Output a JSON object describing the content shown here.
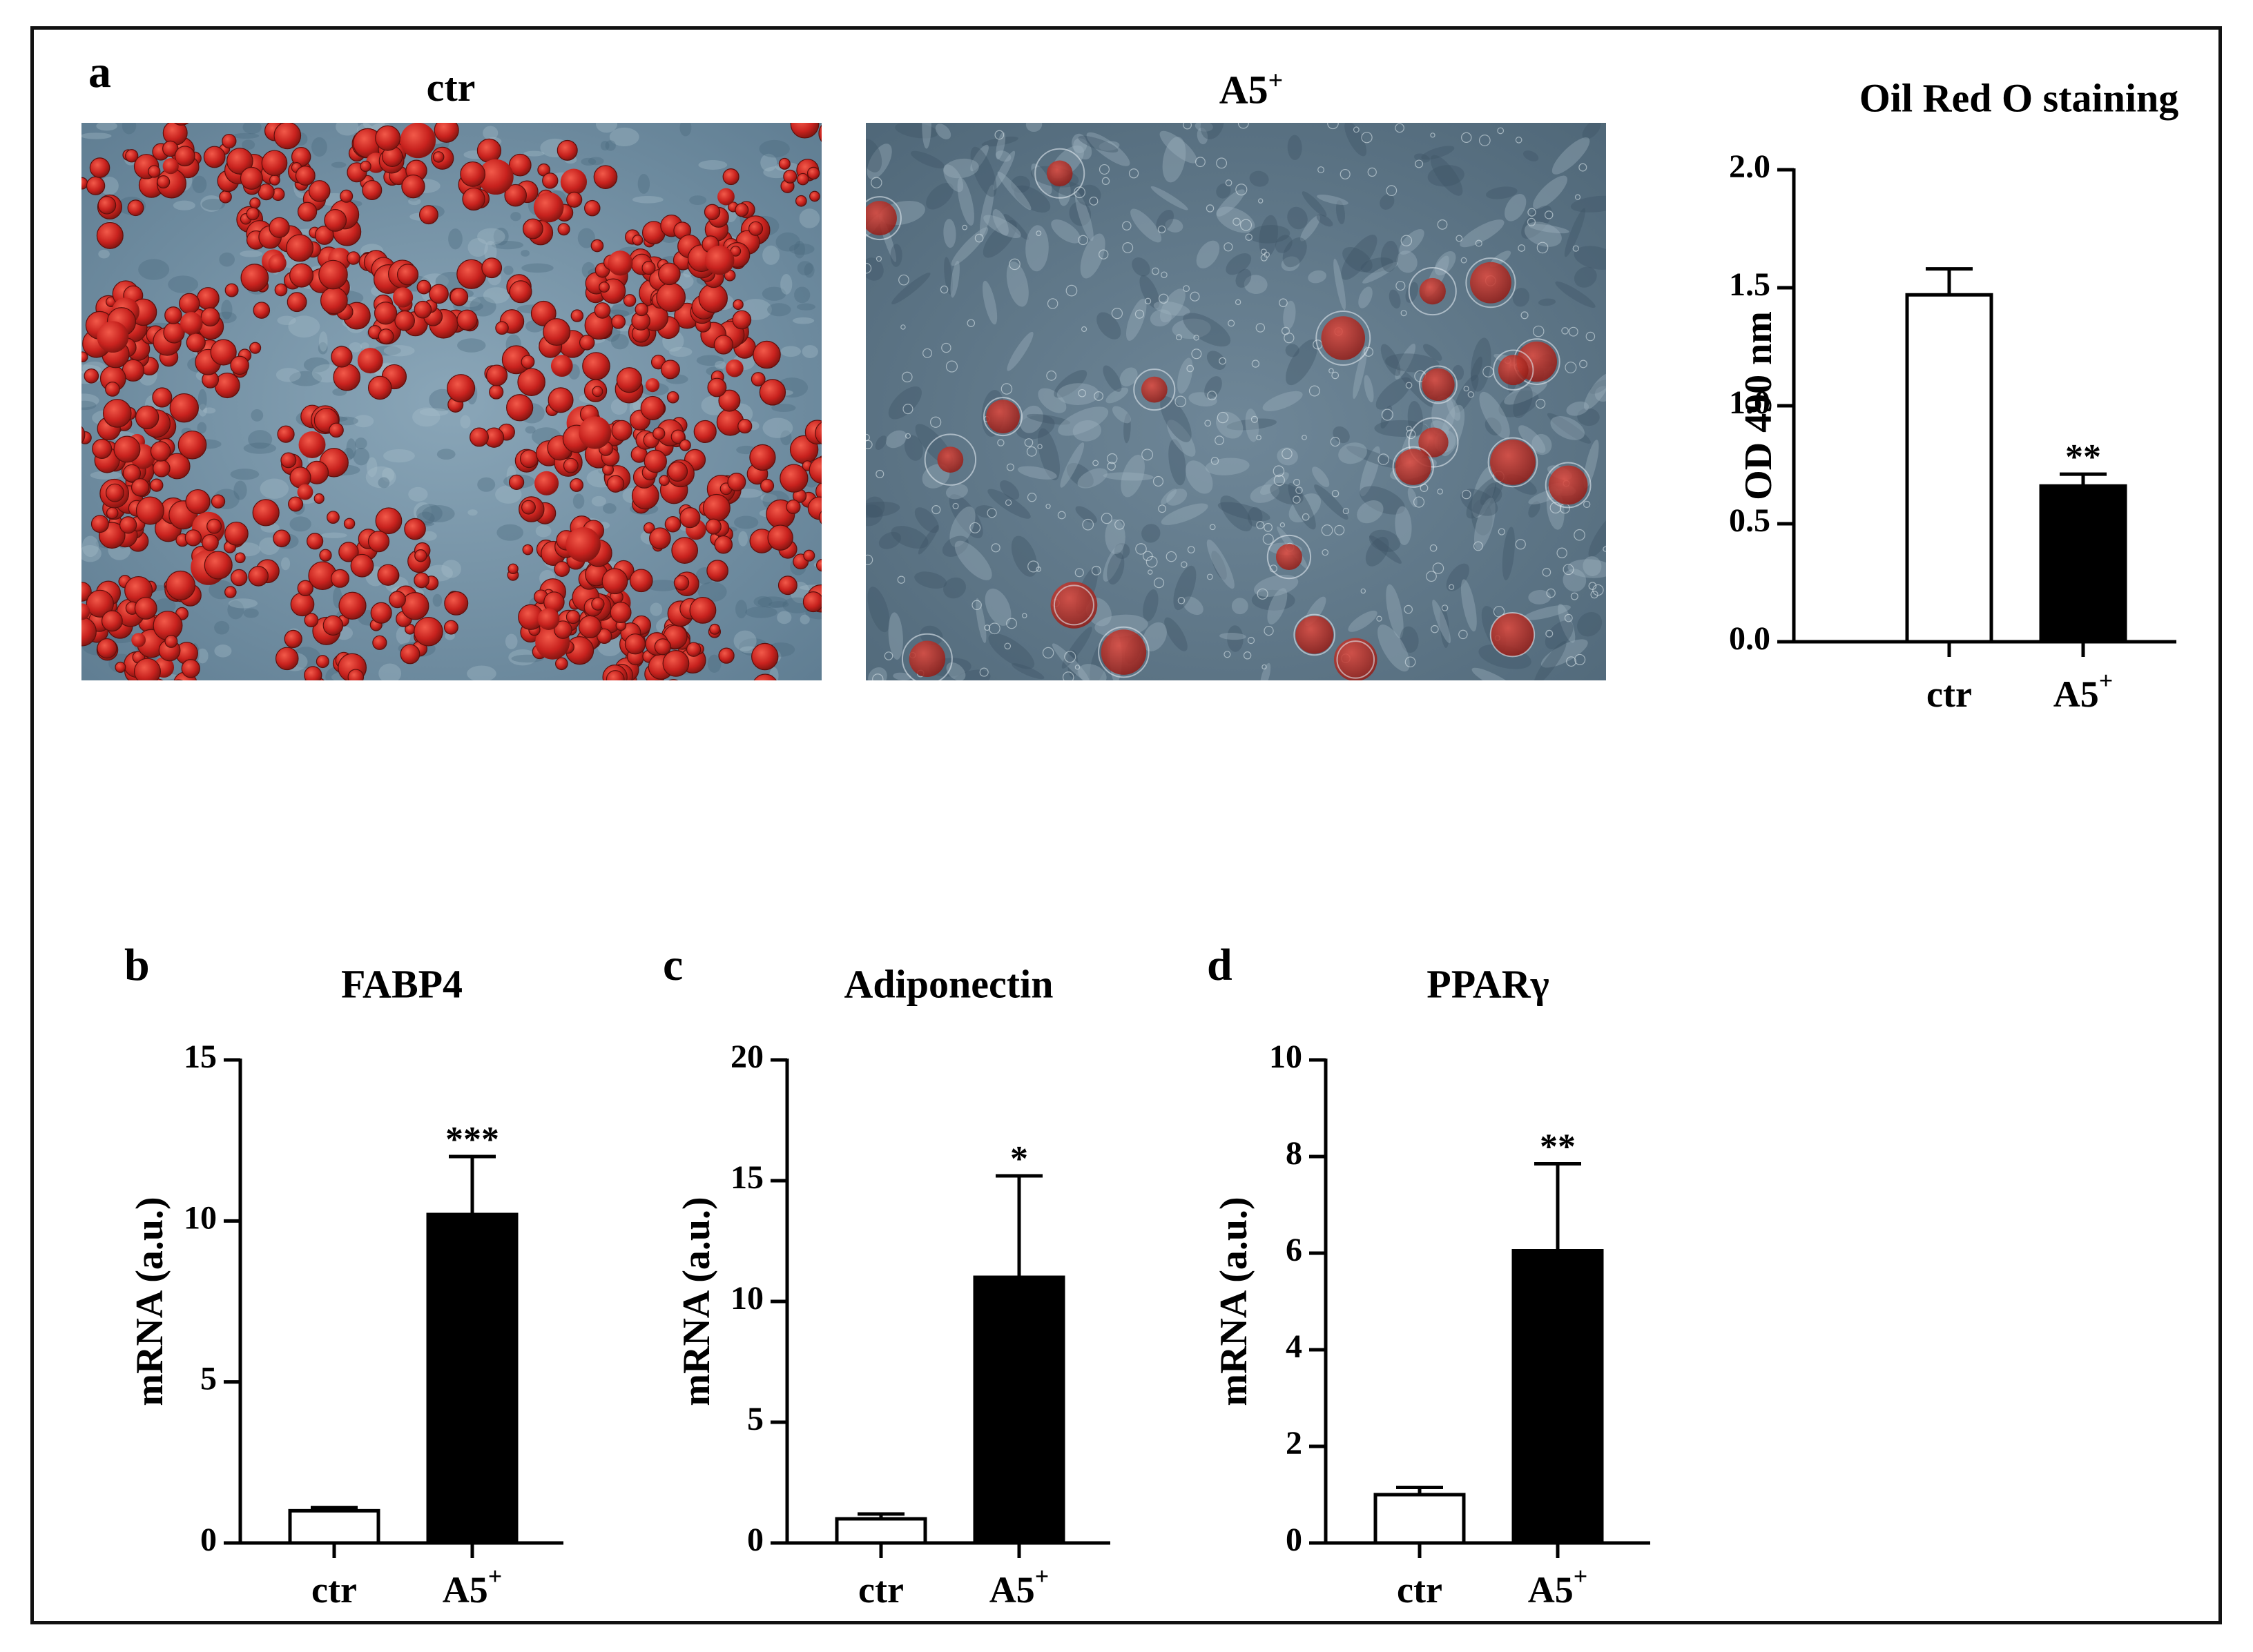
{
  "panels": {
    "a": {
      "label": "a",
      "images": [
        {
          "title": "ctr"
        },
        {
          "title": "A5",
          "title_sup": "+"
        }
      ]
    },
    "b": {
      "label": "b"
    },
    "c": {
      "label": "c"
    },
    "d": {
      "label": "d"
    }
  },
  "colors": {
    "bar_ctr": "#ffffff",
    "bar_a5": "#000000",
    "axis": "#000000",
    "cell_background": "#6f8ea3",
    "lipid": "#c8221e"
  },
  "chart_data": [
    {
      "id": "a",
      "type": "bar",
      "title": "Oil Red O staining",
      "ylabel": "OD 490 nm",
      "ylim": [
        0,
        2.0
      ],
      "yticks": [
        0.0,
        0.5,
        1.0,
        1.5,
        2.0
      ],
      "ytick_labels": [
        "0.0",
        "0.5",
        "1.0",
        "1.5",
        "2.0"
      ],
      "categories": [
        {
          "label": "ctr",
          "sup": ""
        },
        {
          "label": "A5",
          "sup": "+"
        }
      ],
      "values": [
        1.47,
        0.66
      ],
      "errors": [
        0.11,
        0.05
      ],
      "significance": [
        "",
        "**"
      ]
    },
    {
      "id": "b",
      "type": "bar",
      "title": "FABP4",
      "ylabel": "mRNA (a.u.)",
      "ylim": [
        0,
        15
      ],
      "yticks": [
        0,
        5,
        10,
        15
      ],
      "ytick_labels": [
        "0",
        "5",
        "10",
        "15"
      ],
      "categories": [
        {
          "label": "ctr",
          "sup": ""
        },
        {
          "label": "A5",
          "sup": "+"
        }
      ],
      "values": [
        1.0,
        10.2
      ],
      "errors": [
        0.1,
        1.8
      ],
      "significance": [
        "",
        "***"
      ]
    },
    {
      "id": "c",
      "type": "bar",
      "title": "Adiponectin",
      "ylabel": "mRNA (a.u.)",
      "ylim": [
        0,
        20
      ],
      "yticks": [
        0,
        5,
        10,
        15,
        20
      ],
      "ytick_labels": [
        "0",
        "5",
        "10",
        "15",
        "20"
      ],
      "categories": [
        {
          "label": "ctr",
          "sup": ""
        },
        {
          "label": "A5",
          "sup": "+"
        }
      ],
      "values": [
        1.0,
        11.0
      ],
      "errors": [
        0.2,
        4.2
      ],
      "significance": [
        "",
        "*"
      ]
    },
    {
      "id": "d",
      "type": "bar",
      "title": "PPARγ",
      "ylabel": "mRNA (a.u.)",
      "ylim": [
        0,
        10
      ],
      "yticks": [
        0,
        2,
        4,
        6,
        8,
        10
      ],
      "ytick_labels": [
        "0",
        "2",
        "4",
        "6",
        "8",
        "10"
      ],
      "categories": [
        {
          "label": "ctr",
          "sup": ""
        },
        {
          "label": "A5",
          "sup": "+"
        }
      ],
      "values": [
        1.0,
        6.05
      ],
      "errors": [
        0.15,
        1.8
      ],
      "significance": [
        "",
        "**"
      ]
    }
  ]
}
